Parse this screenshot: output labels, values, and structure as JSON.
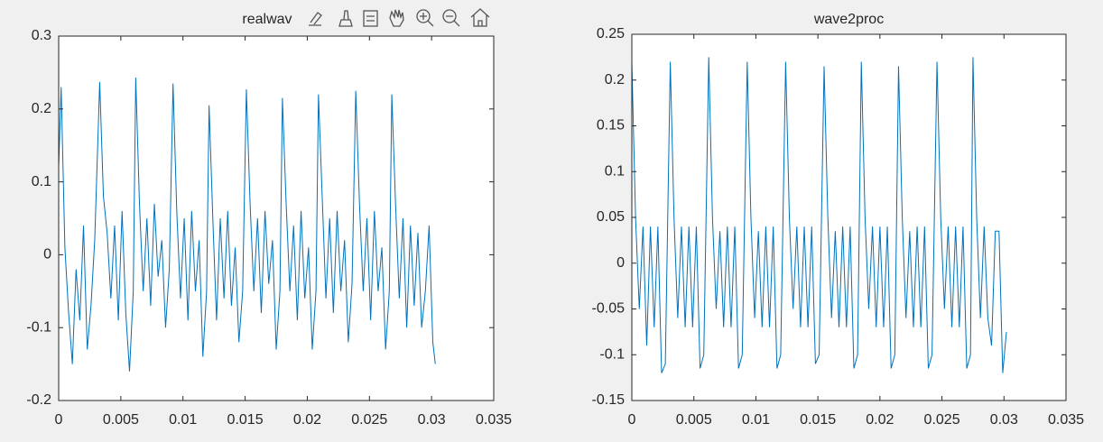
{
  "chart_data": [
    {
      "type": "line",
      "title": "realwav",
      "color": "#0072bd",
      "xlim": [
        0,
        0.035
      ],
      "xticks": [
        0,
        0.005,
        0.01,
        0.015,
        0.02,
        0.025,
        0.03,
        0.035
      ],
      "ylim": [
        -0.2,
        0.3
      ],
      "yticks": [
        -0.2,
        -0.1,
        0,
        0.1,
        0.2,
        0.3
      ],
      "x": [
        0,
        0.0002,
        0.0005,
        0.0008,
        0.0011,
        0.0014,
        0.0017,
        0.002,
        0.0023,
        0.0026,
        0.0029,
        0.0033,
        0.0036,
        0.0039,
        0.0042,
        0.0045,
        0.0048,
        0.0051,
        0.0054,
        0.0057,
        0.006,
        0.0062,
        0.0065,
        0.0068,
        0.0071,
        0.0074,
        0.0077,
        0.008,
        0.0083,
        0.0086,
        0.0089,
        0.0092,
        0.0095,
        0.0098,
        0.0101,
        0.0104,
        0.0107,
        0.011,
        0.0113,
        0.0116,
        0.0119,
        0.0121,
        0.0124,
        0.0127,
        0.013,
        0.0133,
        0.0136,
        0.0139,
        0.0142,
        0.0145,
        0.0148,
        0.0151,
        0.0154,
        0.0157,
        0.016,
        0.0163,
        0.0166,
        0.0169,
        0.0172,
        0.0175,
        0.0178,
        0.018,
        0.0183,
        0.0186,
        0.0189,
        0.0192,
        0.0195,
        0.0198,
        0.0201,
        0.0204,
        0.0207,
        0.0209,
        0.0212,
        0.0215,
        0.0218,
        0.0221,
        0.0224,
        0.0227,
        0.023,
        0.0233,
        0.0236,
        0.0239,
        0.0242,
        0.0245,
        0.0248,
        0.0251,
        0.0254,
        0.0257,
        0.026,
        0.0263,
        0.0266,
        0.0268,
        0.0271,
        0.0274,
        0.0277,
        0.028,
        0.0283,
        0.0286,
        0.0289,
        0.0292,
        0.0295,
        0.0298,
        0.0301,
        0.0303
      ],
      "values": [
        0.12,
        0.23,
        0.01,
        -0.08,
        -0.15,
        -0.02,
        -0.09,
        0.04,
        -0.13,
        -0.07,
        0.02,
        0.237,
        0.08,
        0.03,
        -0.06,
        0.04,
        -0.09,
        0.06,
        -0.08,
        -0.16,
        -0.05,
        0.243,
        0.07,
        -0.05,
        0.05,
        -0.07,
        0.07,
        -0.03,
        0.02,
        -0.1,
        -0.02,
        0.235,
        0.06,
        -0.06,
        0.05,
        -0.09,
        0.06,
        -0.05,
        0.02,
        -0.14,
        -0.05,
        0.205,
        0.05,
        -0.09,
        0.05,
        -0.06,
        0.06,
        -0.07,
        0.01,
        -0.12,
        -0.05,
        0.227,
        0.07,
        -0.05,
        0.05,
        -0.08,
        0.06,
        -0.04,
        0.02,
        -0.13,
        -0.05,
        0.215,
        0.07,
        -0.05,
        0.04,
        -0.09,
        0.06,
        -0.06,
        0.01,
        -0.13,
        -0.05,
        0.22,
        0.08,
        -0.06,
        0.05,
        -0.08,
        0.06,
        -0.05,
        0.02,
        -0.12,
        -0.04,
        0.225,
        0.07,
        -0.05,
        0.05,
        -0.09,
        0.06,
        -0.05,
        0.01,
        -0.13,
        -0.05,
        0.22,
        0.07,
        -0.06,
        0.05,
        -0.1,
        0.04,
        -0.07,
        0.03,
        -0.1,
        -0.05,
        0.04,
        -0.12,
        -0.15
      ]
    },
    {
      "type": "line",
      "title": "wave2proc",
      "color": "#0072bd",
      "xlim": [
        0,
        0.035
      ],
      "xticks": [
        0,
        0.005,
        0.01,
        0.015,
        0.02,
        0.025,
        0.03,
        0.035
      ],
      "ylim": [
        -0.15,
        0.25
      ],
      "yticks": [
        -0.15,
        -0.1,
        -0.05,
        0,
        0.05,
        0.1,
        0.15,
        0.2,
        0.25
      ],
      "x": [
        0,
        0.0003,
        0.0006,
        0.0009,
        0.0012,
        0.0015,
        0.0018,
        0.0021,
        0.0024,
        0.0027,
        0.0031,
        0.0034,
        0.0037,
        0.004,
        0.0043,
        0.0046,
        0.0049,
        0.0052,
        0.0055,
        0.0058,
        0.0062,
        0.0065,
        0.0068,
        0.0071,
        0.0074,
        0.0077,
        0.008,
        0.0083,
        0.0086,
        0.0089,
        0.0093,
        0.0096,
        0.0099,
        0.0102,
        0.0105,
        0.0108,
        0.0111,
        0.0114,
        0.0117,
        0.012,
        0.0124,
        0.0127,
        0.013,
        0.0133,
        0.0136,
        0.0139,
        0.0142,
        0.0145,
        0.0148,
        0.0151,
        0.0155,
        0.0158,
        0.0161,
        0.0164,
        0.0167,
        0.017,
        0.0173,
        0.0176,
        0.0179,
        0.0182,
        0.0185,
        0.0188,
        0.0191,
        0.0194,
        0.0197,
        0.02,
        0.0203,
        0.0206,
        0.0209,
        0.0212,
        0.0215,
        0.0218,
        0.0221,
        0.0224,
        0.0227,
        0.023,
        0.0233,
        0.0236,
        0.0239,
        0.0242,
        0.0246,
        0.0249,
        0.0252,
        0.0255,
        0.0258,
        0.0261,
        0.0264,
        0.0267,
        0.027,
        0.0273,
        0.0275,
        0.0278,
        0.0281,
        0.0284,
        0.0287,
        0.029,
        0.0293,
        0.0296,
        0.0299,
        0.0302
      ],
      "values": [
        0.22,
        0.05,
        -0.05,
        0.04,
        -0.09,
        0.04,
        -0.07,
        0.04,
        -0.12,
        -0.11,
        0.22,
        0.05,
        -0.06,
        0.04,
        -0.07,
        0.04,
        -0.07,
        0.04,
        -0.115,
        -0.1,
        0.225,
        0.05,
        -0.05,
        0.035,
        -0.07,
        0.04,
        -0.07,
        0.04,
        -0.115,
        -0.1,
        0.22,
        0.05,
        -0.06,
        0.035,
        -0.07,
        0.04,
        -0.07,
        0.04,
        -0.115,
        -0.1,
        0.22,
        0.05,
        -0.05,
        0.04,
        -0.07,
        0.04,
        -0.07,
        0.04,
        -0.11,
        -0.1,
        0.215,
        0.05,
        -0.06,
        0.035,
        -0.07,
        0.04,
        -0.07,
        0.04,
        -0.115,
        -0.1,
        0.22,
        0.05,
        -0.05,
        0.04,
        -0.07,
        0.04,
        -0.07,
        0.04,
        -0.115,
        -0.1,
        0.215,
        0.05,
        -0.06,
        0.035,
        -0.07,
        0.04,
        -0.07,
        0.04,
        -0.115,
        -0.1,
        0.22,
        0.05,
        -0.05,
        0.04,
        -0.07,
        0.04,
        -0.07,
        0.04,
        -0.115,
        -0.1,
        0.225,
        0.05,
        -0.06,
        0.04,
        -0.06,
        -0.09,
        0.035,
        0.035,
        -0.12,
        -0.075
      ]
    }
  ]
}
